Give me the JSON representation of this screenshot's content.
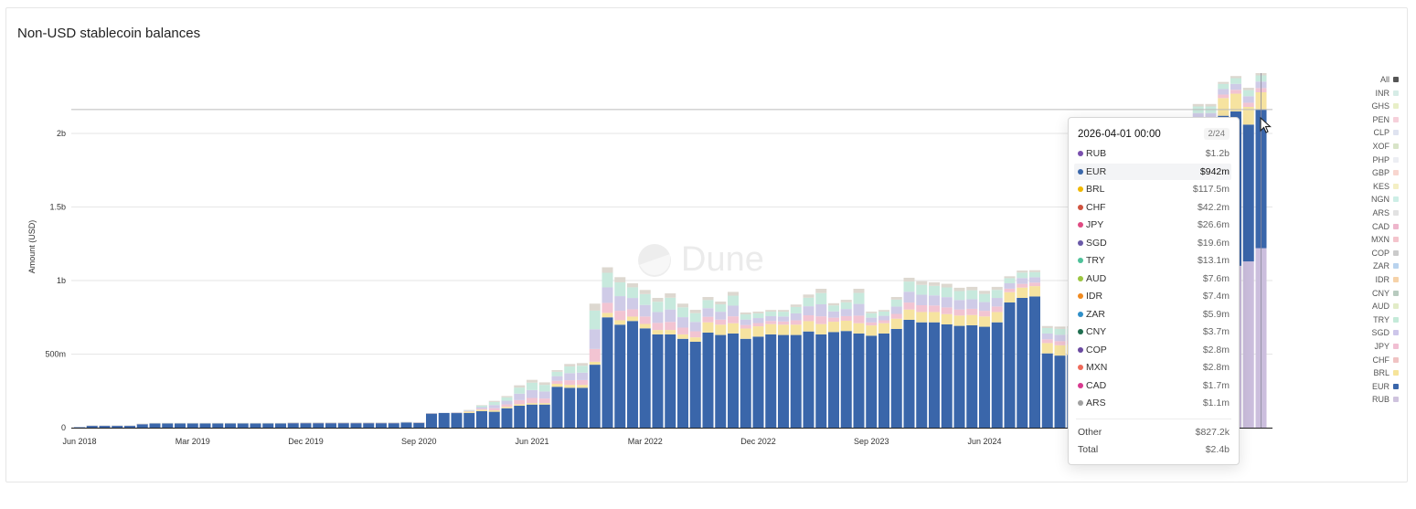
{
  "title": "Non-USD stablecoin balances",
  "brand_watermark": "Dune",
  "chart_data": {
    "type": "bar",
    "stacked": true,
    "title": "Non-USD stablecoin balances",
    "xlabel": "",
    "ylabel": "Amount (USD)",
    "ylim": [
      0,
      2.45
    ],
    "y_unit": "billion USD",
    "grid": true,
    "legend_position": "right",
    "y_ticks": [
      {
        "value": 0,
        "label": "0"
      },
      {
        "value": 0.5,
        "label": "500m"
      },
      {
        "value": 1,
        "label": "1b"
      },
      {
        "value": 1.5,
        "label": "1.5b"
      },
      {
        "value": 2,
        "label": "2b"
      }
    ],
    "x_ticks": [
      {
        "month": "2018-06",
        "label": "Jun 2018"
      },
      {
        "month": "2019-03",
        "label": "Mar 2019"
      },
      {
        "month": "2019-12",
        "label": "Dec 2019"
      },
      {
        "month": "2020-09",
        "label": "Sep 2020"
      },
      {
        "month": "2021-06",
        "label": "Jun 2021"
      },
      {
        "month": "2022-03",
        "label": "Mar 2022"
      },
      {
        "month": "2022-12",
        "label": "Dec 2022"
      },
      {
        "month": "2023-09",
        "label": "Sep 2023"
      },
      {
        "month": "2024-06",
        "label": "Jun 2024"
      }
    ],
    "categories": [
      "2018-06",
      "2018-07",
      "2018-08",
      "2018-09",
      "2018-10",
      "2018-11",
      "2018-12",
      "2019-01",
      "2019-02",
      "2019-03",
      "2019-04",
      "2019-05",
      "2019-06",
      "2019-07",
      "2019-08",
      "2019-09",
      "2019-10",
      "2019-11",
      "2019-12",
      "2020-01",
      "2020-02",
      "2020-03",
      "2020-04",
      "2020-05",
      "2020-06",
      "2020-07",
      "2020-08",
      "2020-09",
      "2020-10",
      "2020-11",
      "2020-12",
      "2021-01",
      "2021-02",
      "2021-03",
      "2021-04",
      "2021-05",
      "2021-06",
      "2021-07",
      "2021-08",
      "2021-09",
      "2021-10",
      "2021-11",
      "2021-12",
      "2022-01",
      "2022-02",
      "2022-03",
      "2022-04",
      "2022-05",
      "2022-06",
      "2022-07",
      "2022-08",
      "2022-09",
      "2022-10",
      "2022-11",
      "2022-12",
      "2023-01",
      "2023-02",
      "2023-03",
      "2023-04",
      "2023-05",
      "2023-06",
      "2023-07",
      "2023-08",
      "2023-09",
      "2023-10",
      "2023-11",
      "2023-12",
      "2024-01",
      "2024-02",
      "2024-03",
      "2024-04",
      "2024-05",
      "2024-06",
      "2024-07",
      "2024-08",
      "2024-09",
      "2024-10",
      "2024-11",
      "2024-12",
      "2025-01",
      "2025-02",
      "2025-03",
      "2025-04",
      "2025-05",
      "2025-06",
      "2025-07",
      "2025-08",
      "2025-09",
      "2025-10",
      "2025-11",
      "2025-12",
      "2026-01",
      "2026-02",
      "2026-03",
      "2026-04"
    ],
    "series": [
      {
        "name": "RUB",
        "color": "#cbbedd",
        "values": [
          0,
          0,
          0,
          0,
          0,
          0,
          0,
          0,
          0,
          0,
          0,
          0,
          0,
          0,
          0,
          0,
          0,
          0,
          0,
          0,
          0,
          0,
          0,
          0,
          0,
          0,
          0,
          0,
          0,
          0,
          0,
          0,
          0,
          0,
          0,
          0,
          0,
          0,
          0,
          0,
          0,
          0,
          0,
          0,
          0,
          0,
          0,
          0,
          0,
          0,
          0,
          0,
          0,
          0,
          0,
          0,
          0,
          0,
          0,
          0,
          0,
          0,
          0,
          0,
          0,
          0,
          0,
          0,
          0,
          0,
          0,
          0,
          0,
          0,
          0,
          0,
          0,
          0,
          0,
          0,
          0,
          0,
          0,
          0,
          0.1,
          0.35,
          0.6,
          0.8,
          0.95,
          1.0,
          1.0,
          1.05,
          1.1,
          1.13,
          1.22
        ]
      },
      {
        "name": "EUR",
        "color": "#3a66aa",
        "values": [
          0.003,
          0.014,
          0.014,
          0.014,
          0.014,
          0.025,
          0.03,
          0.03,
          0.03,
          0.03,
          0.03,
          0.03,
          0.03,
          0.03,
          0.03,
          0.03,
          0.03,
          0.031,
          0.031,
          0.031,
          0.031,
          0.031,
          0.031,
          0.031,
          0.031,
          0.031,
          0.036,
          0.034,
          0.097,
          0.1,
          0.1,
          0.1,
          0.112,
          0.108,
          0.132,
          0.149,
          0.157,
          0.157,
          0.278,
          0.271,
          0.271,
          0.428,
          0.75,
          0.7,
          0.725,
          0.675,
          0.634,
          0.634,
          0.604,
          0.584,
          0.646,
          0.63,
          0.64,
          0.604,
          0.619,
          0.634,
          0.63,
          0.63,
          0.654,
          0.634,
          0.65,
          0.657,
          0.64,
          0.625,
          0.64,
          0.671,
          0.733,
          0.716,
          0.716,
          0.702,
          0.692,
          0.696,
          0.686,
          0.716,
          0.851,
          0.882,
          0.892,
          0.505,
          0.49,
          0.495,
          0.52,
          0.55,
          0.58,
          0.65,
          0.75,
          0.8,
          0.85,
          0.9,
          0.9,
          0.95,
          0.95,
          1.07,
          1.05,
          0.93,
          0.942
        ]
      },
      {
        "name": "BRL",
        "color": "#f6e3a0",
        "values": [
          0,
          0,
          0,
          0,
          0,
          0,
          0,
          0,
          0,
          0,
          0,
          0,
          0,
          0,
          0,
          0,
          0,
          0,
          0,
          0,
          0,
          0,
          0,
          0,
          0,
          0,
          0,
          0,
          0,
          0,
          0,
          0.01,
          0.01,
          0.01,
          0.01,
          0.01,
          0.01,
          0.01,
          0.02,
          0.02,
          0.02,
          0.02,
          0.03,
          0.03,
          0.03,
          0.03,
          0.03,
          0.03,
          0.03,
          0.03,
          0.07,
          0.07,
          0.07,
          0.07,
          0.07,
          0.07,
          0.07,
          0.07,
          0.07,
          0.07,
          0.07,
          0.07,
          0.07,
          0.07,
          0.07,
          0.07,
          0.07,
          0.07,
          0.07,
          0.07,
          0.07,
          0.07,
          0.07,
          0.07,
          0.07,
          0.07,
          0.07,
          0.07,
          0.07,
          0.07,
          0.07,
          0.07,
          0.07,
          0.07,
          0.07,
          0.07,
          0.07,
          0.07,
          0.1,
          0.11,
          0.11,
          0.12,
          0.12,
          0.12,
          0.1175
        ]
      }
    ],
    "total": [
      0.003,
      0.015,
      0.015,
      0.015,
      0.015,
      0.027,
      0.032,
      0.032,
      0.032,
      0.032,
      0.032,
      0.032,
      0.032,
      0.032,
      0.032,
      0.032,
      0.032,
      0.036,
      0.036,
      0.036,
      0.036,
      0.036,
      0.036,
      0.036,
      0.036,
      0.036,
      0.039,
      0.037,
      0.099,
      0.1,
      0.106,
      0.12,
      0.153,
      0.182,
      0.215,
      0.288,
      0.325,
      0.308,
      0.391,
      0.433,
      0.439,
      0.843,
      1.09,
      1.023,
      0.981,
      0.936,
      0.882,
      0.913,
      0.843,
      0.801,
      0.888,
      0.857,
      0.923,
      0.783,
      0.789,
      0.8,
      0.8,
      0.837,
      0.905,
      0.944,
      0.846,
      0.869,
      0.944,
      0.789,
      0.8,
      0.888,
      1.019,
      0.996,
      0.988,
      0.978,
      0.951,
      0.957,
      0.93,
      0.957,
      1.029,
      1.068,
      1.07,
      0.691,
      0.687,
      0.69,
      0.72,
      0.76,
      0.8,
      0.9,
      1.1,
      1.4,
      1.7,
      1.95,
      2.11,
      2.2,
      2.2,
      2.35,
      2.39,
      2.31,
      2.41
    ],
    "other_band_colors": [
      "#f2c4d2",
      "#cfcbe7",
      "#c7e9dd",
      "#ddd8d0"
    ]
  },
  "legend": [
    {
      "label": "All",
      "color": "#555555"
    },
    {
      "label": "INR",
      "color": "#d6ece6"
    },
    {
      "label": "GHS",
      "color": "#e8efc8"
    },
    {
      "label": "PEN",
      "color": "#f6d0da"
    },
    {
      "label": "CLP",
      "color": "#dfe3f0"
    },
    {
      "label": "XOF",
      "color": "#d8e4c8"
    },
    {
      "label": "PHP",
      "color": "#eceef3"
    },
    {
      "label": "GBP",
      "color": "#f8d6cf"
    },
    {
      "label": "KES",
      "color": "#f4efc4"
    },
    {
      "label": "NGN",
      "color": "#cdeee6"
    },
    {
      "label": "ARS",
      "color": "#e2e2e2"
    },
    {
      "label": "CAD",
      "color": "#eeb6cc"
    },
    {
      "label": "MXN",
      "color": "#f4c4cc"
    },
    {
      "label": "COP",
      "color": "#cbcbcb"
    },
    {
      "label": "ZAR",
      "color": "#b9d3ee"
    },
    {
      "label": "IDR",
      "color": "#f6d2a8"
    },
    {
      "label": "CNY",
      "color": "#b8cbbf"
    },
    {
      "label": "AUD",
      "color": "#e2ecc8"
    },
    {
      "label": "TRY",
      "color": "#c4ead9"
    },
    {
      "label": "SGD",
      "color": "#cdc6ea"
    },
    {
      "label": "JPY",
      "color": "#f1bfd3"
    },
    {
      "label": "CHF",
      "color": "#f0c3c3"
    },
    {
      "label": "BRL",
      "color": "#f6e49a"
    },
    {
      "label": "EUR",
      "color": "#3a66aa"
    },
    {
      "label": "RUB",
      "color": "#cfc3de"
    }
  ],
  "tooltip": {
    "date": "2026-04-01 00:00",
    "page": "2/24",
    "highlighted": "EUR",
    "rows": [
      {
        "label": "RUB",
        "value": "$1.2b",
        "color": "#7a4fae"
      },
      {
        "label": "EUR",
        "value": "$942m",
        "color": "#3a67aa"
      },
      {
        "label": "BRL",
        "value": "$117.5m",
        "color": "#f0b800"
      },
      {
        "label": "CHF",
        "value": "$42.2m",
        "color": "#d0533f"
      },
      {
        "label": "JPY",
        "value": "$26.6m",
        "color": "#e04a82"
      },
      {
        "label": "SGD",
        "value": "$19.6m",
        "color": "#6a5aa8"
      },
      {
        "label": "TRY",
        "value": "$13.1m",
        "color": "#4fc19a"
      },
      {
        "label": "AUD",
        "value": "$7.6m",
        "color": "#9bc540"
      },
      {
        "label": "IDR",
        "value": "$7.4m",
        "color": "#f08a1f"
      },
      {
        "label": "ZAR",
        "value": "$5.9m",
        "color": "#2f8fc8"
      },
      {
        "label": "CNY",
        "value": "$3.7m",
        "color": "#1f6e4f"
      },
      {
        "label": "COP",
        "value": "$2.8m",
        "color": "#6a4aa0"
      },
      {
        "label": "MXN",
        "value": "$2.8m",
        "color": "#ef6a5a"
      },
      {
        "label": "CAD",
        "value": "$1.7m",
        "color": "#d8398f"
      },
      {
        "label": "ARS",
        "value": "$1.1m",
        "color": "#a0a0a0"
      }
    ],
    "other_label": "Other",
    "other_value": "$827.2k",
    "total_label": "Total",
    "total_value": "$2.4b"
  }
}
